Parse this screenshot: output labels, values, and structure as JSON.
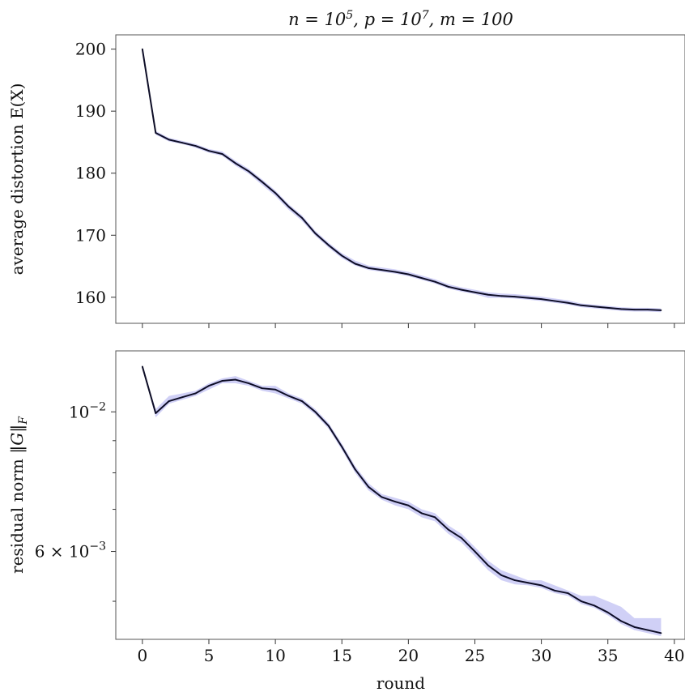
{
  "chart_data": [
    {
      "type": "line",
      "title": "n = 10^5, p = 10^7, m = 100",
      "title_parts": {
        "a": "n = 10",
        "a_sup": "5",
        "b": ", p = 10",
        "b_sup": "7",
        "c": ", m = 100"
      },
      "xlabel": "",
      "ylabel": "average distortion E(X)",
      "xlim": [
        -2,
        40.8
      ],
      "ylim": [
        155.8,
        202.3
      ],
      "y_scale": "linear",
      "xticks": [
        0,
        5,
        10,
        15,
        20,
        25,
        30,
        35,
        40
      ],
      "yticks": [
        160,
        170,
        180,
        190,
        200
      ],
      "ytick_labels": [
        "160",
        "170",
        "180",
        "190",
        "200"
      ],
      "grid": false,
      "line_color": "#0d0d26",
      "band_color": "#c8c8f5",
      "x": [
        0,
        1,
        2,
        3,
        4,
        5,
        6,
        7,
        8,
        9,
        10,
        11,
        12,
        13,
        14,
        15,
        16,
        17,
        18,
        19,
        20,
        21,
        22,
        23,
        24,
        25,
        26,
        27,
        28,
        29,
        30,
        31,
        32,
        33,
        34,
        35,
        36,
        37,
        38,
        39
      ],
      "series": [
        {
          "values": [
            200,
            186.5,
            185.4,
            184.9,
            184.4,
            183.6,
            183.1,
            181.6,
            180.3,
            178.6,
            176.8,
            174.6,
            172.8,
            170.3,
            168.4,
            166.7,
            165.4,
            164.7,
            164.4,
            164.1,
            163.7,
            163.1,
            162.5,
            161.7,
            161.2,
            160.8,
            160.4,
            160.2,
            160.1,
            159.9,
            159.7,
            159.4,
            159.1,
            158.7,
            158.5,
            158.3,
            158.1,
            158.0,
            158.0,
            157.9
          ],
          "band_low": [
            200,
            186.2,
            185.1,
            184.7,
            184.1,
            183.3,
            182.8,
            181.2,
            179.9,
            178.1,
            176.3,
            174.1,
            172.3,
            169.9,
            168.0,
            166.3,
            165.1,
            164.4,
            164.1,
            163.8,
            163.4,
            162.8,
            162.2,
            161.4,
            160.9,
            160.5,
            159.9,
            159.9,
            159.8,
            159.6,
            159.4,
            159.1,
            158.8,
            158.4,
            158.2,
            158.0,
            157.8,
            157.7,
            157.7,
            157.6
          ],
          "band_high": [
            200,
            186.8,
            185.7,
            185.2,
            184.7,
            183.9,
            183.5,
            182.0,
            180.7,
            179.0,
            177.2,
            175.0,
            173.2,
            170.7,
            168.8,
            167.1,
            165.9,
            165.1,
            164.8,
            164.5,
            164.1,
            163.5,
            162.9,
            162.1,
            161.6,
            161.2,
            160.8,
            160.6,
            160.5,
            160.3,
            160.1,
            159.8,
            159.5,
            159.0,
            158.8,
            158.6,
            158.4,
            158.3,
            158.3,
            158.2
          ]
        }
      ]
    },
    {
      "type": "line",
      "title": "",
      "xlabel": "round",
      "ylabel": "residual norm ||G||_F",
      "ylabel_parts": {
        "a": "residual norm ",
        "b": "‖G‖",
        "sub": "F"
      },
      "xlim": [
        -2,
        40.8
      ],
      "ylim": [
        0.00435,
        0.0125
      ],
      "y_scale": "log",
      "xticks": [
        0,
        5,
        10,
        15,
        20,
        25,
        30,
        35,
        40
      ],
      "yticks": [
        0.01,
        0.006
      ],
      "ytick_labels": [
        "10^-2",
        "6 × 10^-3"
      ],
      "ytick_label_parts": [
        {
          "base": "10",
          "sup": "−2"
        },
        {
          "base": "6 × 10",
          "sup": "−3"
        }
      ],
      "minor_yticks": [
        0.005,
        0.007,
        0.008,
        0.009
      ],
      "grid": false,
      "line_color": "#0d0d26",
      "band_color": "#c8c8f5",
      "x": [
        0,
        1,
        2,
        3,
        4,
        5,
        6,
        7,
        8,
        9,
        10,
        11,
        12,
        13,
        14,
        15,
        16,
        17,
        18,
        19,
        20,
        21,
        22,
        23,
        24,
        25,
        26,
        27,
        28,
        29,
        30,
        31,
        32,
        33,
        34,
        35,
        36,
        37,
        38,
        39
      ],
      "series": [
        {
          "values": [
            0.0118,
            0.00995,
            0.0104,
            0.01055,
            0.0107,
            0.011,
            0.0112,
            0.01125,
            0.0111,
            0.0109,
            0.01085,
            0.0106,
            0.0104,
            0.01,
            0.0095,
            0.0088,
            0.0081,
            0.0076,
            0.00732,
            0.0072,
            0.0071,
            0.0069,
            0.0068,
            0.0065,
            0.0063,
            0.006,
            0.0057,
            0.0055,
            0.0054,
            0.00535,
            0.0053,
            0.0052,
            0.00515,
            0.005,
            0.00492,
            0.0048,
            0.00465,
            0.00455,
            0.0045,
            0.00445
          ],
          "band_low": [
            0.0118,
            0.0098,
            0.0103,
            0.01045,
            0.0106,
            0.01085,
            0.0111,
            0.0111,
            0.011,
            0.0108,
            0.0107,
            0.0105,
            0.0103,
            0.0099,
            0.0094,
            0.0087,
            0.008,
            0.0075,
            0.00725,
            0.0071,
            0.007,
            0.0068,
            0.0067,
            0.0064,
            0.0062,
            0.0059,
            0.0056,
            0.0054,
            0.00532,
            0.0053,
            0.00525,
            0.00515,
            0.0051,
            0.00495,
            0.00488,
            0.00475,
            0.0046,
            0.0045,
            0.00445,
            0.0044
          ],
          "band_high": [
            0.0118,
            0.0101,
            0.0106,
            0.0107,
            0.0108,
            0.0111,
            0.0113,
            0.0114,
            0.0112,
            0.011,
            0.011,
            0.0107,
            0.0105,
            0.0101,
            0.0096,
            0.0089,
            0.0082,
            0.0077,
            0.0074,
            0.0073,
            0.0072,
            0.007,
            0.0069,
            0.0066,
            0.0064,
            0.0061,
            0.0058,
            0.0056,
            0.0055,
            0.0054,
            0.0054,
            0.0053,
            0.0052,
            0.0051,
            0.0051,
            0.005,
            0.0049,
            0.0047,
            0.0047,
            0.0047
          ]
        }
      ]
    }
  ]
}
